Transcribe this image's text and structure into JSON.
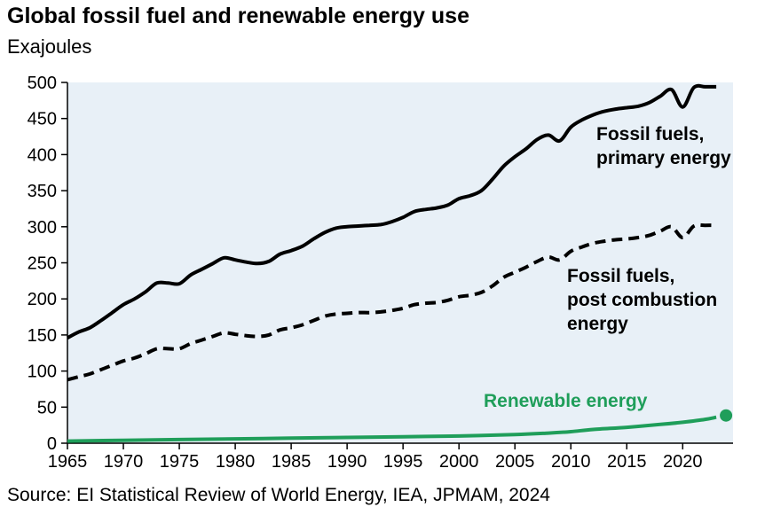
{
  "title": "Global fossil fuel and renewable energy use",
  "subtitle": "Exajoules",
  "source": "Source: EI Statistical Review of World Energy, IEA, JPMAM, 2024",
  "chart_data": {
    "type": "line",
    "title": "Global fossil fuel and renewable energy use",
    "ylabel": "Exajoules",
    "xlim": [
      1965,
      2024.5
    ],
    "ylim": [
      0,
      500
    ],
    "y_ticks": [
      0,
      50,
      100,
      150,
      200,
      250,
      300,
      350,
      400,
      450,
      500
    ],
    "x_ticks": [
      1965,
      1970,
      1975,
      1980,
      1985,
      1990,
      1995,
      2000,
      2005,
      2010,
      2015,
      2020
    ],
    "grid": false,
    "background": "#e8f0f7",
    "series": [
      {
        "name": "Fossil fuels, primary energy",
        "label": [
          "Fossil fuels,",
          "primary energy"
        ],
        "color": "#000000",
        "style": "solid",
        "x": [
          1965,
          1966,
          1967,
          1968,
          1969,
          1970,
          1971,
          1972,
          1973,
          1974,
          1975,
          1976,
          1977,
          1978,
          1979,
          1980,
          1981,
          1982,
          1983,
          1984,
          1985,
          1986,
          1987,
          1988,
          1989,
          1990,
          1991,
          1992,
          1993,
          1994,
          1995,
          1996,
          1997,
          1998,
          1999,
          2000,
          2001,
          2002,
          2003,
          2004,
          2005,
          2006,
          2007,
          2008,
          2009,
          2010,
          2011,
          2012,
          2013,
          2014,
          2015,
          2016,
          2017,
          2018,
          2019,
          2020,
          2021,
          2022,
          2023
        ],
        "y": [
          146,
          154,
          160,
          170,
          181,
          192,
          200,
          210,
          222,
          222,
          221,
          233,
          241,
          249,
          257,
          254,
          251,
          249,
          252,
          262,
          267,
          273,
          283,
          292,
          298,
          300,
          301,
          302,
          303,
          307,
          313,
          321,
          324,
          326,
          330,
          339,
          343,
          350,
          366,
          384,
          397,
          408,
          421,
          427,
          419,
          438,
          448,
          455,
          460,
          463,
          465,
          467,
          472,
          481,
          490,
          466,
          493,
          494,
          494
        ]
      },
      {
        "name": "Fossil fuels, post combustion energy",
        "label": [
          "Fossil fuels,",
          "post combustion",
          "energy"
        ],
        "color": "#000000",
        "style": "dashed",
        "x": [
          1965,
          1966,
          1967,
          1968,
          1969,
          1970,
          1971,
          1972,
          1973,
          1974,
          1975,
          1976,
          1977,
          1978,
          1979,
          1980,
          1981,
          1982,
          1983,
          1984,
          1985,
          1986,
          1987,
          1988,
          1989,
          1990,
          1991,
          1992,
          1993,
          1994,
          1995,
          1996,
          1997,
          1998,
          1999,
          2000,
          2001,
          2002,
          2003,
          2004,
          2005,
          2006,
          2007,
          2008,
          2009,
          2010,
          2011,
          2012,
          2013,
          2014,
          2015,
          2016,
          2017,
          2018,
          2019,
          2020,
          2021,
          2022,
          2023
        ],
        "y": [
          88,
          92,
          96,
          102,
          108,
          114,
          118,
          124,
          131,
          131,
          131,
          138,
          143,
          148,
          153,
          151,
          149,
          148,
          150,
          157,
          160,
          164,
          170,
          176,
          179,
          180,
          181,
          181,
          182,
          184,
          187,
          192,
          194,
          195,
          198,
          203,
          205,
          209,
          218,
          230,
          237,
          244,
          252,
          258,
          254,
          266,
          272,
          277,
          280,
          282,
          283,
          285,
          288,
          294,
          300,
          285,
          301,
          302,
          302
        ]
      },
      {
        "name": "Renewable energy",
        "label": [
          "Renewable energy"
        ],
        "color": "#1f9e5a",
        "style": "solid",
        "endpoint_marker": true,
        "x": [
          1965,
          1970,
          1975,
          1980,
          1985,
          1990,
          1995,
          2000,
          2005,
          2008,
          2010,
          2012,
          2015,
          2018,
          2020,
          2022,
          2023
        ],
        "y": [
          3,
          4,
          5,
          6,
          7,
          8,
          9,
          10,
          12,
          14,
          16,
          19,
          22,
          26,
          29,
          33,
          36
        ]
      }
    ]
  }
}
